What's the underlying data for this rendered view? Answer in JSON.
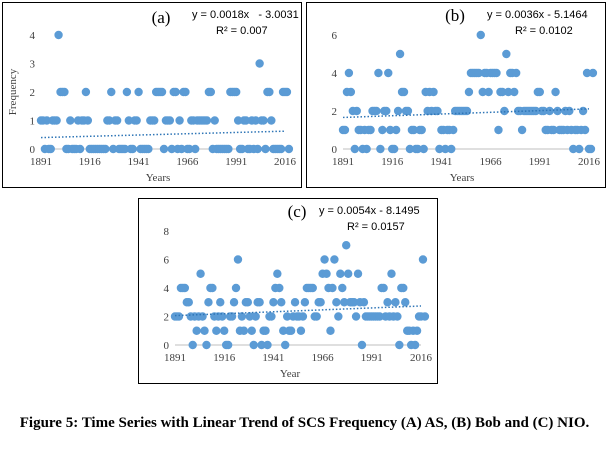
{
  "caption": "Figure 5: Time Series with Linear Trend of SCS Frequency (A) AS, (B) Bob and (C) NIO.",
  "colors": {
    "marker": "#5b9bd5",
    "trend": "#2e75b6",
    "axis": "#bfbfbf",
    "text": "#404040"
  },
  "chart_data": [
    {
      "type": "scatter",
      "panel_label": "(a)",
      "equation": "y = 0.0018x   - 3.0031",
      "r_squared": "R² = 0.007",
      "xlabel": "Years",
      "ylabel": "Frequency",
      "xlim": [
        1891,
        2016
      ],
      "ylim": [
        0,
        4
      ],
      "xticks": [
        1891,
        1916,
        1941,
        1966,
        1991,
        2016
      ],
      "yticks": [
        0,
        1,
        2,
        3,
        4
      ],
      "grid": false,
      "trend": {
        "slope": 0.0018,
        "intercept": -3.0031
      },
      "x": [
        1891,
        1892,
        1893,
        1894,
        1895,
        1896,
        1897,
        1898,
        1899,
        1900,
        1901,
        1902,
        1903,
        1904,
        1905,
        1906,
        1907,
        1908,
        1909,
        1910,
        1911,
        1912,
        1913,
        1914,
        1915,
        1916,
        1917,
        1918,
        1919,
        1920,
        1921,
        1922,
        1923,
        1924,
        1925,
        1926,
        1927,
        1928,
        1929,
        1930,
        1931,
        1932,
        1933,
        1934,
        1935,
        1936,
        1937,
        1938,
        1939,
        1940,
        1941,
        1942,
        1943,
        1944,
        1945,
        1946,
        1947,
        1948,
        1949,
        1950,
        1951,
        1952,
        1953,
        1954,
        1955,
        1956,
        1957,
        1958,
        1959,
        1960,
        1961,
        1962,
        1963,
        1964,
        1965,
        1966,
        1967,
        1968,
        1969,
        1970,
        1971,
        1972,
        1973,
        1974,
        1975,
        1976,
        1977,
        1978,
        1979,
        1980,
        1981,
        1982,
        1983,
        1984,
        1985,
        1986,
        1987,
        1988,
        1989,
        1990,
        1991,
        1992,
        1993,
        1994,
        1995,
        1996,
        1997,
        1998,
        1999,
        2000,
        2001,
        2002,
        2003,
        2004,
        2005,
        2006,
        2007,
        2008,
        2009,
        2010,
        2011,
        2012,
        2013,
        2014,
        2015,
        2016,
        2017,
        2018
      ],
      "y": [
        1,
        1,
        0,
        1,
        0,
        0,
        1,
        1,
        1,
        4,
        2,
        2,
        2,
        0,
        0,
        1,
        0,
        0,
        0,
        1,
        0,
        1,
        1,
        2,
        1,
        0,
        0,
        0,
        0,
        0,
        0,
        0,
        0,
        0,
        1,
        1,
        2,
        0,
        1,
        1,
        0,
        0,
        0,
        0,
        2,
        1,
        0,
        0,
        1,
        1,
        2,
        0,
        0,
        0,
        0,
        0,
        1,
        1,
        1,
        2,
        2,
        2,
        2,
        0,
        1,
        1,
        1,
        0,
        2,
        2,
        0,
        1,
        0,
        2,
        2,
        0,
        0,
        1,
        1,
        0,
        1,
        1,
        1,
        1,
        1,
        1,
        2,
        2,
        0,
        1,
        0,
        0,
        0,
        0,
        0,
        0,
        0,
        2,
        2,
        2,
        2,
        1,
        0,
        0,
        1,
        1,
        0,
        0,
        1,
        0,
        1,
        0,
        3,
        1,
        1,
        0,
        2,
        2,
        1,
        0,
        0,
        0,
        0,
        0,
        2,
        2,
        2,
        0
      ]
    },
    {
      "type": "scatter",
      "panel_label": "(b)",
      "equation": "y = 0.0036x - 5.1464",
      "r_squared": "R² = 0.0102",
      "xlabel": "Years",
      "ylabel": "",
      "xlim": [
        1891,
        2016
      ],
      "ylim": [
        0,
        6
      ],
      "xticks": [
        1891,
        1916,
        1941,
        1966,
        1991,
        2016
      ],
      "yticks": [
        0,
        2,
        4,
        6
      ],
      "grid": false,
      "trend": {
        "slope": 0.0036,
        "intercept": -5.1464
      },
      "x": [
        1891,
        1892,
        1893,
        1894,
        1895,
        1896,
        1897,
        1898,
        1899,
        1900,
        1901,
        1902,
        1903,
        1904,
        1905,
        1906,
        1907,
        1908,
        1909,
        1910,
        1911,
        1912,
        1913,
        1914,
        1915,
        1916,
        1917,
        1918,
        1919,
        1920,
        1921,
        1922,
        1923,
        1924,
        1925,
        1926,
        1927,
        1928,
        1929,
        1930,
        1931,
        1932,
        1933,
        1934,
        1935,
        1936,
        1937,
        1938,
        1939,
        1940,
        1941,
        1942,
        1943,
        1944,
        1945,
        1946,
        1947,
        1948,
        1949,
        1950,
        1951,
        1952,
        1953,
        1954,
        1955,
        1956,
        1957,
        1958,
        1959,
        1960,
        1961,
        1962,
        1963,
        1964,
        1965,
        1966,
        1967,
        1968,
        1969,
        1970,
        1971,
        1972,
        1973,
        1974,
        1975,
        1976,
        1977,
        1978,
        1979,
        1980,
        1981,
        1982,
        1983,
        1984,
        1985,
        1986,
        1987,
        1988,
        1989,
        1990,
        1991,
        1992,
        1993,
        1994,
        1995,
        1996,
        1997,
        1998,
        1999,
        2000,
        2001,
        2002,
        2003,
        2004,
        2005,
        2006,
        2007,
        2008,
        2009,
        2010,
        2011,
        2012,
        2013,
        2014,
        2015,
        2016,
        2017,
        2018
      ],
      "y": [
        1,
        1,
        3,
        4,
        3,
        2,
        0,
        2,
        1,
        1,
        0,
        1,
        0,
        1,
        1,
        2,
        2,
        2,
        4,
        0,
        1,
        2,
        2,
        4,
        1,
        0,
        0,
        1,
        2,
        5,
        3,
        3,
        2,
        2,
        0,
        1,
        1,
        0,
        0,
        1,
        1,
        0,
        3,
        2,
        3,
        2,
        3,
        2,
        2,
        0,
        1,
        1,
        0,
        1,
        1,
        0,
        1,
        2,
        2,
        2,
        2,
        2,
        2,
        2,
        3,
        4,
        4,
        4,
        4,
        4,
        6,
        3,
        4,
        4,
        3,
        4,
        4,
        4,
        4,
        1,
        3,
        3,
        2,
        5,
        3,
        4,
        4,
        3,
        4,
        2,
        2,
        1,
        2,
        2,
        2,
        2,
        2,
        2,
        2,
        3,
        3,
        2,
        2,
        1,
        1,
        2,
        1,
        1,
        3,
        2,
        1,
        1,
        1,
        2,
        1,
        2,
        1,
        0,
        1,
        1,
        0,
        1,
        2,
        1,
        4,
        0,
        0,
        4
      ]
    },
    {
      "type": "scatter",
      "panel_label": "(c)",
      "equation": "y = 0.0054x - 8.1495",
      "r_squared": "R² = 0.0157",
      "xlabel": "Year",
      "ylabel": "",
      "xlim": [
        1891,
        2016
      ],
      "ylim": [
        0,
        8
      ],
      "xticks": [
        1891,
        1916,
        1941,
        1966,
        1991,
        2016
      ],
      "yticks": [
        0,
        2,
        4,
        6,
        8
      ],
      "grid": false,
      "trend": {
        "slope": 0.0054,
        "intercept": -8.1495
      },
      "x": [
        1891,
        1892,
        1893,
        1894,
        1895,
        1896,
        1897,
        1898,
        1899,
        1900,
        1901,
        1902,
        1903,
        1904,
        1905,
        1906,
        1907,
        1908,
        1909,
        1910,
        1911,
        1912,
        1913,
        1914,
        1915,
        1916,
        1917,
        1918,
        1919,
        1920,
        1921,
        1922,
        1923,
        1924,
        1925,
        1926,
        1927,
        1928,
        1929,
        1930,
        1931,
        1932,
        1933,
        1934,
        1935,
        1936,
        1937,
        1938,
        1939,
        1940,
        1941,
        1942,
        1943,
        1944,
        1945,
        1946,
        1947,
        1948,
        1949,
        1950,
        1951,
        1952,
        1953,
        1954,
        1955,
        1956,
        1957,
        1958,
        1959,
        1960,
        1961,
        1962,
        1963,
        1964,
        1965,
        1966,
        1967,
        1968,
        1969,
        1970,
        1971,
        1972,
        1973,
        1974,
        1975,
        1976,
        1977,
        1978,
        1979,
        1980,
        1981,
        1982,
        1983,
        1984,
        1985,
        1986,
        1987,
        1988,
        1989,
        1990,
        1991,
        1992,
        1993,
        1994,
        1995,
        1996,
        1997,
        1998,
        1999,
        2000,
        2001,
        2002,
        2003,
        2004,
        2005,
        2006,
        2007,
        2008,
        2009,
        2010,
        2011,
        2012,
        2013,
        2014,
        2015,
        2016,
        2017,
        2018
      ],
      "y": [
        2,
        2,
        2,
        4,
        4,
        4,
        3,
        3,
        2,
        0,
        2,
        1,
        2,
        5,
        2,
        1,
        0,
        3,
        4,
        4,
        2,
        1,
        2,
        3,
        2,
        1,
        0,
        0,
        2,
        2,
        3,
        4,
        6,
        1,
        2,
        1,
        3,
        3,
        2,
        1,
        0,
        2,
        3,
        3,
        0,
        1,
        1,
        0,
        2,
        2,
        3,
        4,
        5,
        4,
        3,
        1,
        0,
        2,
        1,
        1,
        2,
        3,
        2,
        2,
        1,
        2,
        3,
        4,
        4,
        4,
        4,
        2,
        2,
        3,
        3,
        5,
        6,
        5,
        4,
        1,
        4,
        6,
        3,
        2,
        5,
        4,
        3,
        7,
        5,
        3,
        3,
        3,
        2,
        5,
        3,
        0,
        3,
        2,
        2,
        2,
        2,
        2,
        2,
        2,
        2,
        4,
        4,
        2,
        3,
        2,
        5,
        2,
        3,
        2,
        0,
        4,
        4,
        3,
        1,
        1,
        0,
        1,
        0,
        1,
        2,
        2,
        6,
        2
      ]
    }
  ]
}
